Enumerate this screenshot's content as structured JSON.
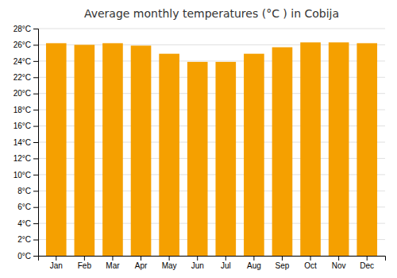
{
  "chart_data": {
    "type": "bar",
    "title": "Average monthly temperatures (°C ) in Cobija",
    "categories": [
      "Jan",
      "Feb",
      "Mar",
      "Apr",
      "May",
      "Jun",
      "Jul",
      "Aug",
      "Sep",
      "Oct",
      "Nov",
      "Dec"
    ],
    "values": [
      26.2,
      26.0,
      26.2,
      25.9,
      24.9,
      23.9,
      23.9,
      24.9,
      25.7,
      26.3,
      26.3,
      26.2
    ],
    "color": "#F5A000",
    "ylim": [
      0,
      28
    ],
    "yticks": [
      {
        "value": 0,
        "label": "0°C"
      },
      {
        "value": 2,
        "label": "2°C"
      },
      {
        "value": 4,
        "label": "4°C"
      },
      {
        "value": 6,
        "label": "6°C"
      },
      {
        "value": 8,
        "label": "8°C"
      },
      {
        "value": 10,
        "label": "10°C"
      },
      {
        "value": 12,
        "label": "12°C"
      },
      {
        "value": 14,
        "label": "14°C"
      },
      {
        "value": 16,
        "label": "16°C"
      },
      {
        "value": 18,
        "label": "18°C"
      },
      {
        "value": 20,
        "label": "20°C"
      },
      {
        "value": 22,
        "label": "22°C"
      },
      {
        "value": 24,
        "label": "24°C"
      },
      {
        "value": 26,
        "label": "26°C"
      },
      {
        "value": 28,
        "label": "28°C"
      }
    ],
    "grid": true
  }
}
